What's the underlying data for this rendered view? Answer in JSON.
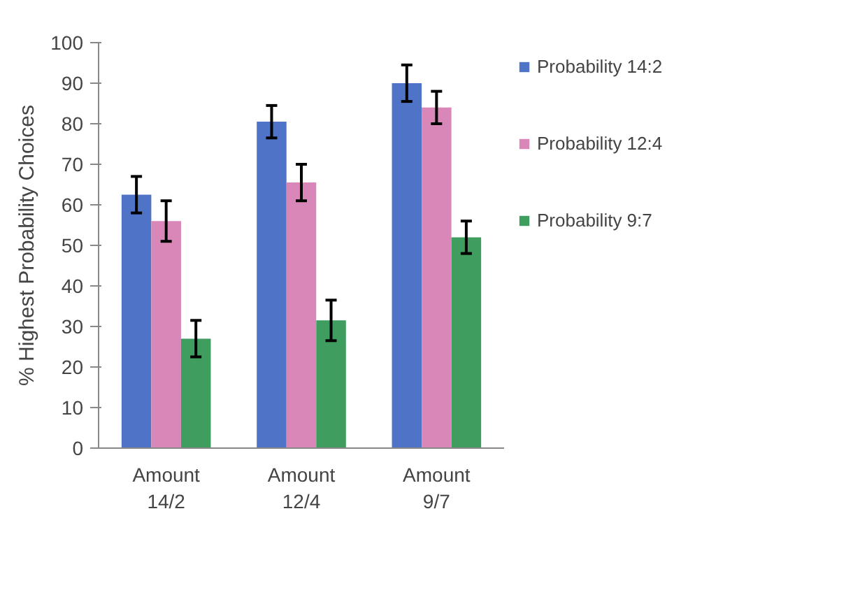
{
  "chart_data": {
    "type": "bar",
    "ylabel": "% Highest Probability Choices",
    "categories": [
      "Amount 14/2",
      "Amount 12/4",
      "Amount 9/7"
    ],
    "series": [
      {
        "name": "Probability 14:2",
        "color": "#4f73c6",
        "values": [
          62.5,
          80.5,
          90
        ],
        "errors": [
          4.5,
          4,
          4.5
        ]
      },
      {
        "name": "Probability 12:4",
        "color": "#d986b8",
        "values": [
          56,
          65.5,
          84
        ],
        "errors": [
          5,
          4.5,
          4
        ]
      },
      {
        "name": "Probability 9:7",
        "color": "#3f9e5f",
        "values": [
          27,
          31.5,
          52
        ],
        "errors": [
          4.5,
          5,
          4
        ]
      }
    ],
    "ylim": [
      0,
      100
    ],
    "yticks": [
      0,
      10,
      20,
      30,
      40,
      50,
      60,
      70,
      80,
      90,
      100
    ],
    "grid": false,
    "legend": "right"
  }
}
